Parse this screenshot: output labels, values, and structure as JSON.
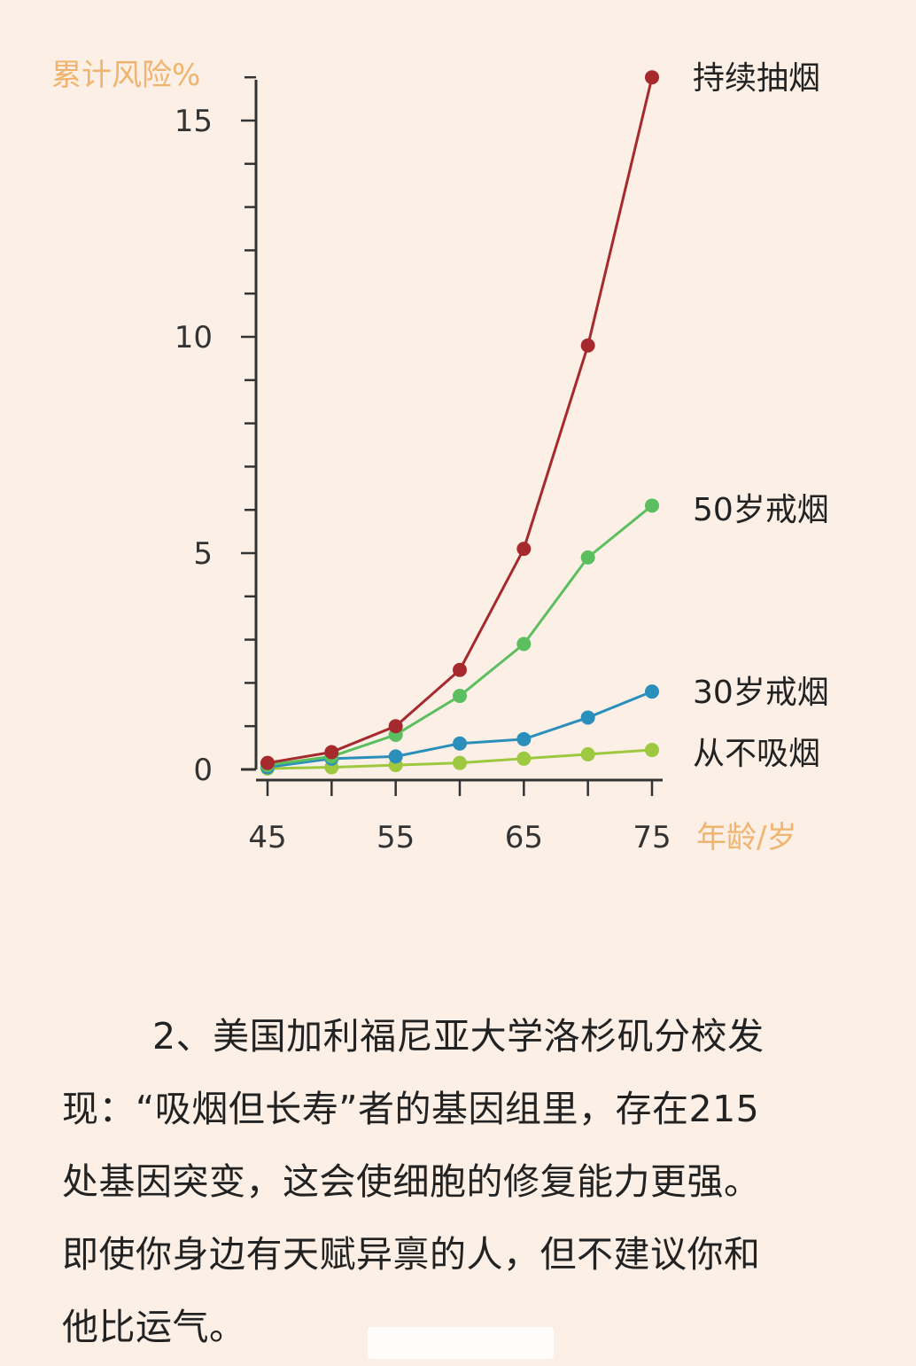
{
  "chart_data": {
    "type": "line",
    "ylabel": "累计风险%",
    "xlabel": "年龄/岁",
    "x": [
      45,
      50,
      55,
      60,
      65,
      70,
      75
    ],
    "x_ticks": [
      "45",
      "55",
      "65",
      "75"
    ],
    "y_ticks": [
      "0",
      "5",
      "10",
      "15"
    ],
    "xlim": [
      45,
      75
    ],
    "ylim": [
      0,
      16
    ],
    "grid": false,
    "series": [
      {
        "name": "持续抽烟",
        "color": "#a62a2d",
        "values": [
          0.15,
          0.4,
          1.0,
          2.3,
          5.1,
          9.8,
          16.0
        ]
      },
      {
        "name": "50岁戒烟",
        "color": "#5bbf5f",
        "values": [
          0.1,
          0.3,
          0.8,
          1.7,
          2.9,
          4.9,
          6.1
        ]
      },
      {
        "name": "30岁戒烟",
        "color": "#2a8fba",
        "values": [
          0.05,
          0.25,
          0.3,
          0.6,
          0.7,
          1.2,
          1.8
        ]
      },
      {
        "name": "从不吸烟",
        "color": "#9dc83f",
        "values": [
          0.02,
          0.05,
          0.1,
          0.15,
          0.25,
          0.35,
          0.45
        ]
      }
    ]
  },
  "article": {
    "line1": "2、美国加利福尼亚大学洛杉矶分校发",
    "line2": "现：“吸烟但长寿”者的基因组里，存在215",
    "line3": "处基因突变，这会使细胞的修复能力更强。",
    "line4": "即使你身边有天赋异禀的人，但不建议你和",
    "line5": "他比运气。"
  }
}
